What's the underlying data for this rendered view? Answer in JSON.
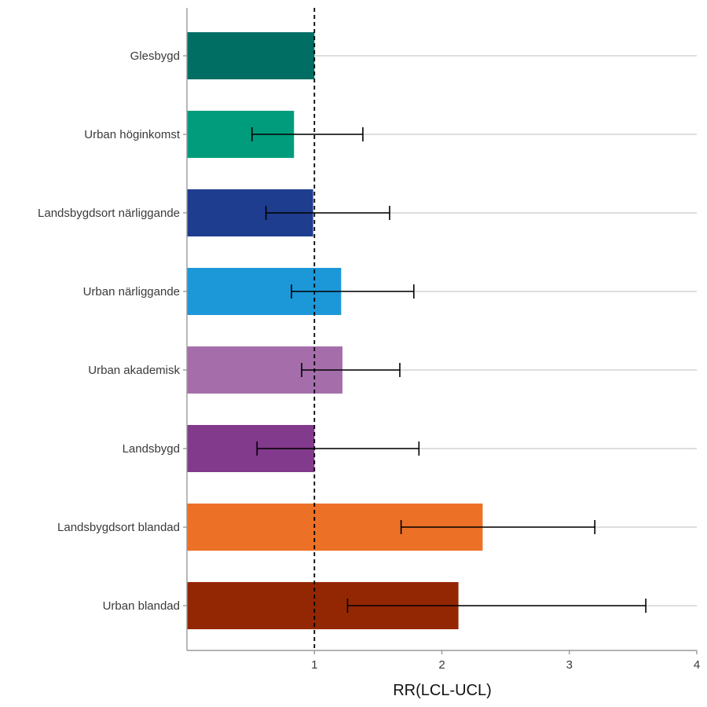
{
  "chart_data": {
    "type": "bar",
    "orientation": "horizontal",
    "title": "",
    "xlabel": "RR(LCL-UCL)",
    "ylabel": "",
    "xlim": [
      0,
      4
    ],
    "x_ticks": [
      1,
      2,
      3,
      4
    ],
    "x_tick_labels": [
      "1",
      "2",
      "3",
      "4"
    ],
    "reference_line": {
      "x": 1,
      "style": "dashed"
    },
    "grid": "horizontal major lines only",
    "legend": "none",
    "categories": [
      "Glesbygd",
      "Urban höginkomst",
      "Landsbygdsort närliggande",
      "Urban närliggande",
      "Urban akademisk",
      "Landsbygd",
      "Landsbygdsort blandad",
      "Urban blandad"
    ],
    "values": [
      1.0,
      0.84,
      0.99,
      1.21,
      1.22,
      1.0,
      2.32,
      2.13
    ],
    "lower_ci": [
      null,
      0.51,
      0.62,
      0.82,
      0.9,
      0.55,
      1.68,
      1.26
    ],
    "upper_ci": [
      null,
      1.38,
      1.59,
      1.78,
      1.67,
      1.82,
      3.2,
      3.6
    ],
    "colors": [
      "#016e64",
      "#009c7c",
      "#1f3d8f",
      "#1c98d8",
      "#a56eab",
      "#823a8c",
      "#ed7027",
      "#932704"
    ]
  }
}
